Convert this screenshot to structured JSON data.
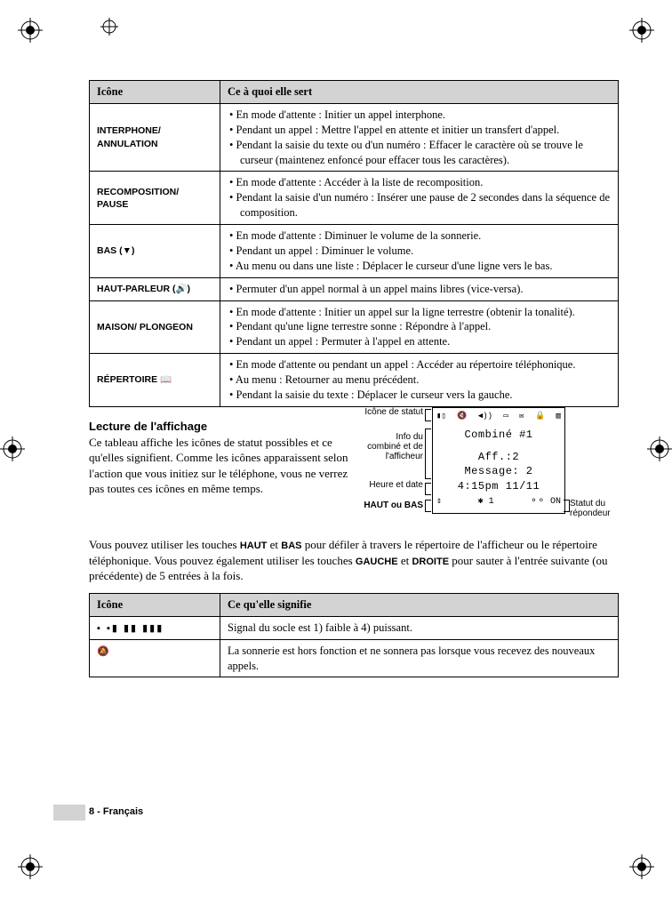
{
  "colors": {
    "header_bg": "#d3d3d3",
    "border": "#000000",
    "text": "#000000",
    "page_bg": "#ffffff"
  },
  "table1": {
    "headers": [
      "Icône",
      "Ce à quoi elle sert"
    ],
    "rows": [
      {
        "label": "INTERPHONE/ ANNULATION",
        "items": [
          "En mode d'attente : Initier un appel interphone.",
          "Pendant un appel : Mettre l'appel en attente et initier un transfert d'appel.",
          "Pendant la saisie du texte ou d'un numéro : Effacer le caractère où se trouve le curseur (maintenez enfoncé pour effacer tous les caractères)."
        ]
      },
      {
        "label": "RECOMPOSITION/ PAUSE",
        "items": [
          "En mode d'attente : Accéder à la liste de recomposition.",
          "Pendant la saisie d'un numéro : Insérer une pause de 2 secondes dans la séquence de composition."
        ]
      },
      {
        "label_html": "BAS (▼)",
        "label": "BAS",
        "items": [
          "En mode d'attente : Diminuer le volume de la sonnerie.",
          "Pendant un appel : Diminuer le volume.",
          "Au menu ou dans une liste : Déplacer le curseur d'une ligne vers le bas."
        ]
      },
      {
        "label_html": "HAUT-PARLEUR (🔊)",
        "label": "HAUT-PARLEUR",
        "items": [
          "Permuter d'un appel normal à un appel mains libres (vice-versa)."
        ]
      },
      {
        "label": "MAISON/ PLONGEON",
        "items": [
          "En mode d'attente : Initier un appel sur la ligne terrestre (obtenir la tonalité).",
          "Pendant qu'une ligne terrestre sonne : Répondre à l'appel.",
          "Pendant un appel : Permuter à l'appel en attente."
        ]
      },
      {
        "label_html": "RÉPERTOIRE 📖",
        "label": "RÉPERTOIRE",
        "items": [
          "En mode d'attente ou pendant un appel : Accéder au répertoire téléphonique.",
          "Au menu : Retourner au menu précédent.",
          "Pendant la saisie du texte : Déplacer le curseur vers la gauche."
        ]
      }
    ]
  },
  "section": {
    "heading": "Lecture de l'affichage",
    "para1": "Ce tableau affiche les icônes de statut possibles et ce qu'elles signifient. Comme les icônes apparaissent selon l'action que vous initiez sur le téléphone, vous ne verrez pas toutes ces icônes en même temps.",
    "para2_pre": "Vous pouvez utiliser les touches ",
    "para2_haut": "HAUT",
    "para2_mid1": " et ",
    "para2_bas": "BAS",
    "para2_mid2": " pour défiler à travers le répertoire de l'afficheur ou le répertoire téléphonique. Vous pouvez également utiliser les touches ",
    "para2_gauche": "GAUCHE",
    "para2_mid3": " et ",
    "para2_droite": "DROITE",
    "para2_end": " pour sauter à l'entrée suivante (ou précédente) de 5 entrées à la fois."
  },
  "diagram": {
    "callouts": {
      "status": "Icône de statut",
      "handset": "Info du combiné et de l'afficheur",
      "time": "Heure et date",
      "updown": "HAUT ou BAS",
      "answerer": "Statut du répondeur"
    },
    "screen": {
      "line1": "Combiné #1",
      "line2": "Aff.:2",
      "line3": "Message: 2",
      "line4": "4:15pm  11/11",
      "bottom_bt": "1",
      "bottom_vm": "⚬⚬ ON"
    }
  },
  "table2": {
    "headers": [
      "Icône",
      "Ce qu'elle signifie"
    ],
    "rows": [
      {
        "icon_text": "▪ ▪▮ ▮▮ ▮▮▮",
        "desc": "Signal du socle est 1) faible à 4) puissant."
      },
      {
        "icon_text": "🔕",
        "desc": "La sonnerie est hors fonction et ne sonnera pas lorsque vous recevez des nouveaux appels."
      }
    ]
  },
  "footer": "8 - Français"
}
